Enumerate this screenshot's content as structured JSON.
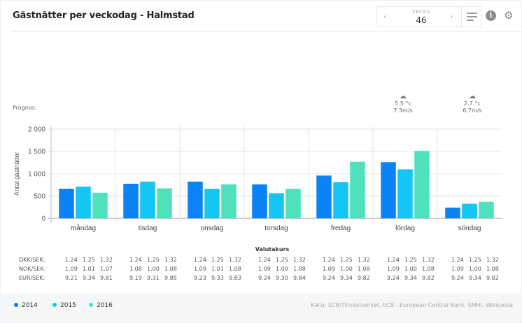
{
  "header": {
    "title": "Gästnätter per veckodag - Halmstad",
    "week_label": "VECKA",
    "week_number": "46",
    "prev_icon": "‹",
    "next_icon": "›",
    "menu_icon": "menu-icon",
    "info_icon": "i",
    "settings_icon": "⚙"
  },
  "forecast": {
    "label": "Prognos:",
    "items": [
      {
        "day": "lördag",
        "icon": "☁",
        "temp": "5.5 °c",
        "wind": "7.3m/s"
      },
      {
        "day": "söndag",
        "icon": "☁",
        "temp": "2.7 °c",
        "wind": "6.7m/s"
      }
    ]
  },
  "colors": {
    "2014": "#0a84f4",
    "2015": "#16c6f2",
    "2016": "#4fe0be"
  },
  "chart_data": {
    "type": "bar",
    "title": "Gästnätter per veckodag - Halmstad",
    "xlabel": "",
    "ylabel": "Antal gästnätter",
    "ylim": [
      0,
      2000
    ],
    "yticks": [
      0,
      500,
      1000,
      1500,
      2000
    ],
    "ytick_labels": [
      "0",
      "500",
      "1 000",
      "1 500",
      "2 000"
    ],
    "grid": true,
    "legend_position": "bottom-left",
    "categories": [
      "måndag",
      "tisdag",
      "onsdag",
      "torsdag",
      "fredag",
      "lördag",
      "söndag"
    ],
    "series": [
      {
        "name": "2014",
        "values": [
          660,
          770,
          820,
          760,
          960,
          1260,
          240
        ]
      },
      {
        "name": "2015",
        "values": [
          710,
          820,
          660,
          560,
          810,
          1100,
          330
        ]
      },
      {
        "name": "2016",
        "values": [
          570,
          670,
          760,
          660,
          1270,
          1510,
          370
        ]
      }
    ]
  },
  "currency": {
    "title": "Valutakurs",
    "rows": [
      {
        "label": "DKK/SEK:",
        "values": [
          [
            "1.24",
            "1.25",
            "1.32"
          ],
          [
            "1.24",
            "1.25",
            "1.32"
          ],
          [
            "1.24",
            "1.25",
            "1.32"
          ],
          [
            "1.24",
            "1.25",
            "1.32"
          ],
          [
            "1.24",
            "1.25",
            "1.32"
          ],
          [
            "1.24",
            "1.25",
            "1.32"
          ],
          [
            "1.24",
            "1.25",
            "1.32"
          ]
        ]
      },
      {
        "label": "NOK/SEK:",
        "values": [
          [
            "1.09",
            "1.01",
            "1.07"
          ],
          [
            "1.08",
            "1.00",
            "1.08"
          ],
          [
            "1.09",
            "1.01",
            "1.08"
          ],
          [
            "1.09",
            "1.00",
            "1.08"
          ],
          [
            "1.09",
            "1.00",
            "1.08"
          ],
          [
            "1.09",
            "1.00",
            "1.08"
          ],
          [
            "1.09",
            "1.00",
            "1.08"
          ]
        ]
      },
      {
        "label": "EUR/SEK:",
        "values": [
          [
            "9.21",
            "9.34",
            "9.81"
          ],
          [
            "9.19",
            "9.31",
            "9.85"
          ],
          [
            "9.23",
            "9.33",
            "9.83"
          ],
          [
            "9.24",
            "9.30",
            "9.84"
          ],
          [
            "9.24",
            "9.34",
            "9.82"
          ],
          [
            "9.24",
            "9.34",
            "9.82"
          ],
          [
            "9.24",
            "9.34",
            "9.82"
          ]
        ]
      }
    ]
  },
  "footer": {
    "legend": [
      "2014",
      "2015",
      "2016"
    ],
    "source": "Källa: SCB/Tillväxtverket, ECB - European Central Bank, SMHI, Wikipedia"
  }
}
